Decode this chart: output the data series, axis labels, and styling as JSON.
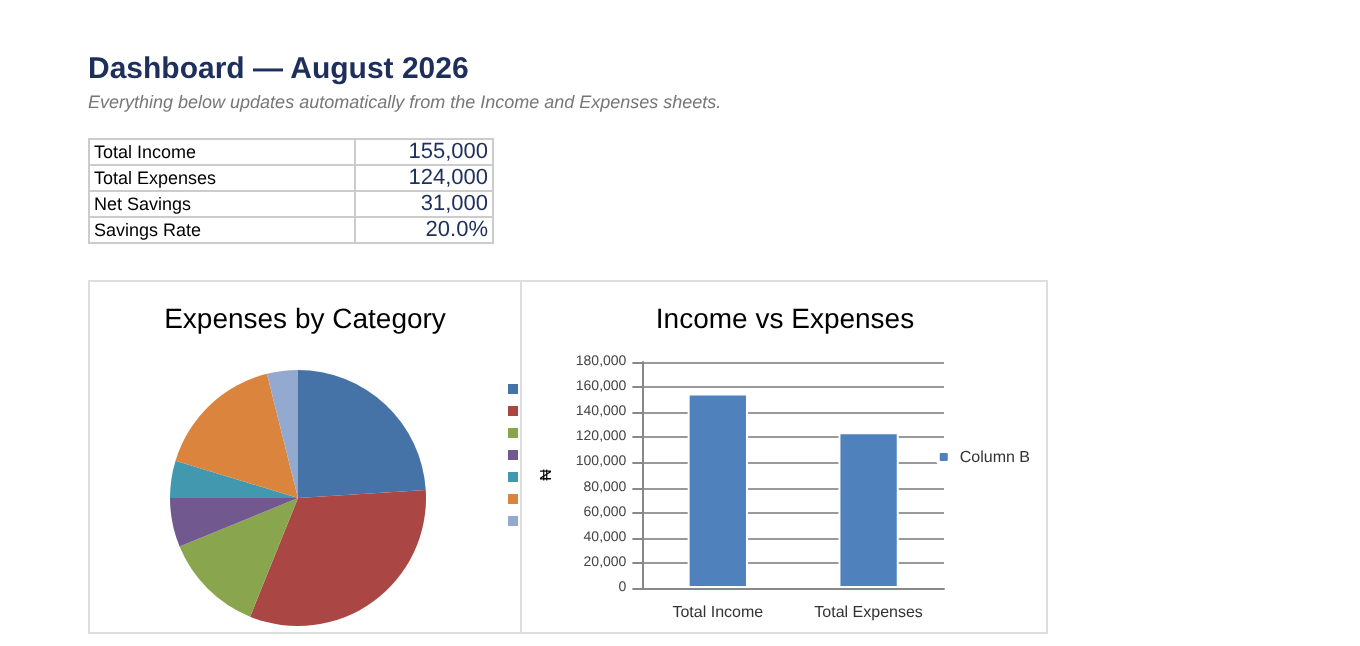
{
  "chart_data": [
    {
      "type": "other",
      "title": "Dashboard — August 2026",
      "subtitle": "Everything below updates automatically from the Income and Expenses sheets.",
      "annotations": [
        "Total Income",
        "155,000",
        "Total Expenses",
        "124,000",
        "Net Savings",
        "31,000",
        "Savings Rate",
        "20.0%"
      ]
    },
    {
      "type": "pie",
      "title": "Expenses by Category",
      "categories": [
        null,
        null,
        null,
        null,
        null,
        null,
        null
      ],
      "values": [
        24,
        32.1,
        12.7,
        6.2,
        4.7,
        16.4,
        3.9
      ],
      "colors": [
        "#4572a7",
        "#aa4643",
        "#89a54e",
        "#71588f",
        "#4198af",
        "#db843d",
        "#93a9cf"
      ]
    },
    {
      "type": "bar",
      "title": "Income vs Expenses",
      "ylabel": "₦",
      "categories": [
        "Total Income",
        "Total Expenses"
      ],
      "series": [
        {
          "name": "Column B",
          "color": "#4f81bd",
          "values": [
            155000,
            124000
          ]
        }
      ],
      "ylim": [
        0,
        180000
      ],
      "yticks": [
        0,
        {
          "value": 20000,
          "label": "20,000"
        },
        {
          "value": 40000,
          "label": "40,000"
        },
        {
          "value": 60000,
          "label": "60,000"
        },
        {
          "value": 80000,
          "label": "80,000"
        },
        {
          "value": 100000,
          "label": "100,000"
        },
        {
          "value": 120000,
          "label": "120,000"
        },
        {
          "value": 140000,
          "label": "140,000"
        },
        {
          "value": 160000,
          "label": "160,000"
        },
        {
          "value": 180000,
          "label": "180,000"
        }
      ],
      "grid": "y",
      "legend": "right"
    }
  ]
}
